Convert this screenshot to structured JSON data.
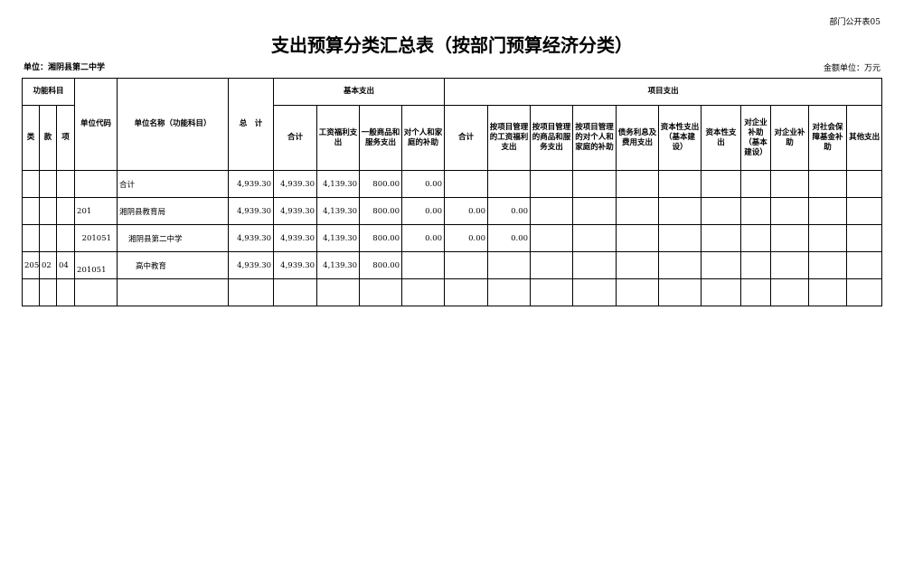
{
  "form_code": "部门公开表05",
  "title": "支出预算分类汇总表（按部门预算经济分类）",
  "unit": "单位：湘阴县第二中学",
  "money_unit": "金额单位：万元",
  "headers": {
    "func": "功能科目",
    "lei": "类",
    "kuan": "款",
    "xiang": "项",
    "code": "单位代码",
    "name": "单位名称（功能科目）",
    "total": "总　计",
    "basic": "基本支出",
    "project": "项目支出",
    "basic_cols": [
      "合计",
      "工资福利支出",
      "一般商品和服务支出",
      "对个人和家庭的补助"
    ],
    "project_cols": [
      "合计",
      "按项目管理的工资福利支出",
      "按项目管理的商品和服务支出",
      "按项目管理的对个人和家庭的补助",
      "债务利息及费用支出",
      "资本性支出（基本建设）",
      "资本性支出",
      "对企业补助（基本建设）",
      "对企业补助",
      "对社会保障基金补助",
      "其他支出"
    ]
  },
  "rows": [
    {
      "lei": "",
      "kuan": "",
      "xiang": "",
      "code": "",
      "name": "合计",
      "values": [
        "4,939.30",
        "4,939.30",
        "4,139.30",
        "800.00",
        "0.00",
        "",
        "",
        "",
        "",
        "",
        "",
        "",
        "",
        "",
        "",
        ""
      ]
    },
    {
      "lei": "",
      "kuan": "",
      "xiang": "",
      "code": "201",
      "name": "湘阴县教育局",
      "values": [
        "4,939.30",
        "4,939.30",
        "4,139.30",
        "800.00",
        "0.00",
        "0.00",
        "0.00",
        "",
        "",
        "",
        "",
        "",
        "",
        "",
        "",
        ""
      ]
    },
    {
      "lei": "",
      "kuan": "",
      "xiang": "",
      "code": "201051",
      "name": "湘阴县第二中学",
      "values": [
        "4,939.30",
        "4,939.30",
        "4,139.30",
        "800.00",
        "0.00",
        "0.00",
        "0.00",
        "",
        "",
        "",
        "",
        "",
        "",
        "",
        "",
        ""
      ]
    },
    {
      "lei": "205",
      "kuan": "02",
      "xiang": "04",
      "code": "201051",
      "name": "高中教育",
      "values": [
        "4,939.30",
        "4,939.30",
        "4,139.30",
        "800.00",
        "",
        "",
        "",
        "",
        "",
        "",
        "",
        "",
        "",
        "",
        "",
        ""
      ]
    },
    {
      "lei": "",
      "kuan": "",
      "xiang": "",
      "code": "",
      "name": "",
      "values": [
        "",
        "",
        "",
        "",
        "",
        "",
        "",
        "",
        "",
        "",
        "",
        "",
        "",
        "",
        "",
        ""
      ]
    }
  ]
}
